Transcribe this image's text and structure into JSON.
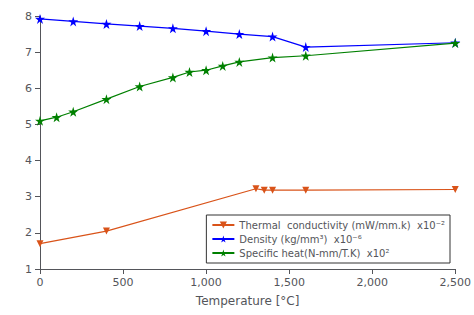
{
  "chart_data": {
    "type": "line",
    "xlabel": "Temperature [°C]",
    "xlim": [
      0,
      2500
    ],
    "xticks": [
      0,
      500,
      1000,
      1500,
      2000,
      2500
    ],
    "ylim": [
      1,
      8
    ],
    "yticks": [
      1,
      2,
      3,
      4,
      5,
      6,
      7,
      8
    ],
    "grid": false,
    "legend": "lower right",
    "series": [
      {
        "name": "Thermal  conductivity (mW/mm.k)  x10⁻²",
        "color": "#d95319",
        "marker": "triangle_down",
        "x": [
          0,
          400,
          1300,
          1350,
          1400,
          1600,
          2500
        ],
        "values": [
          1.7,
          2.05,
          3.22,
          3.18,
          3.18,
          3.18,
          3.2
        ]
      },
      {
        "name": "Density (kg/mm³)  x10⁻⁶",
        "color": "#0000ff",
        "marker": "star",
        "x": [
          0,
          200,
          400,
          600,
          800,
          1000,
          1200,
          1400,
          1600,
          2500
        ],
        "values": [
          7.92,
          7.85,
          7.78,
          7.72,
          7.66,
          7.58,
          7.5,
          7.43,
          7.14,
          7.26
        ]
      },
      {
        "name": "Specific heat(N-mm/T.K)  x10²",
        "color": "#008000",
        "marker": "star",
        "x": [
          0,
          100,
          200,
          400,
          600,
          800,
          900,
          1000,
          1100,
          1200,
          1400,
          1600,
          2500
        ],
        "values": [
          5.1,
          5.2,
          5.35,
          5.7,
          6.05,
          6.3,
          6.45,
          6.5,
          6.62,
          6.73,
          6.85,
          6.9,
          7.25
        ]
      }
    ]
  }
}
